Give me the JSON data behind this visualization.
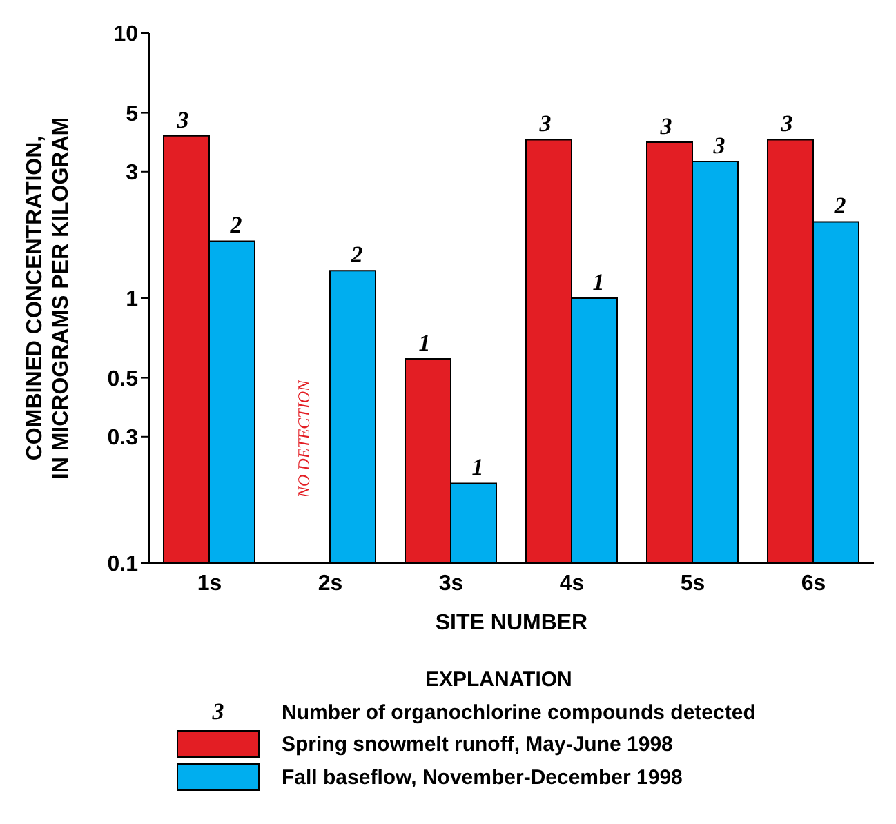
{
  "chart_data": {
    "type": "bar",
    "categories": [
      "1s",
      "2s",
      "3s",
      "4s",
      "5s",
      "6s"
    ],
    "series": [
      {
        "name": "Spring snowmelt runoff, May-June 1998",
        "color": "#e31e24",
        "values": [
          4.1,
          null,
          0.59,
          3.96,
          3.88,
          3.96
        ]
      },
      {
        "name": "Fall baseflow, November-December 1998",
        "color": "#00aeef",
        "values": [
          1.64,
          1.27,
          0.2,
          1.0,
          3.28,
          1.94
        ]
      }
    ],
    "xlabel": "SITE NUMBER",
    "ylabel": "COMBINED CONCENTRATION,\nIN MICROGRAMS PER KILOGRAM",
    "legend_title": "EXPLANATION",
    "annotations": [
      {
        "text": "3",
        "x": "1s",
        "y": 4.1
      },
      {
        "text": "2",
        "x": "1s",
        "y": 1.64
      },
      {
        "text": "2",
        "x": "2s",
        "y": 1.27
      },
      {
        "text": "1",
        "x": "3s",
        "y": 0.59
      },
      {
        "text": "1",
        "x": "3s",
        "y": 0.2
      },
      {
        "text": "3",
        "x": "4s",
        "y": 3.96
      },
      {
        "text": "1",
        "x": "4s",
        "y": 1.0
      },
      {
        "text": "3",
        "x": "5s",
        "y": 3.88
      },
      {
        "text": "3",
        "x": "5s",
        "y": 3.28
      },
      {
        "text": "3",
        "x": "6s",
        "y": 3.96
      },
      {
        "text": "2",
        "x": "6s",
        "y": 1.94
      },
      {
        "text": "NO DETECTION",
        "x": "2s"
      },
      "3",
      "Number of organochlorine compounds detected"
    ],
    "log": "y",
    "ylim": [
      0.1,
      10
    ],
    "yticks": [
      0.1,
      0.3,
      0.5,
      1,
      3,
      5,
      10
    ],
    "grid": false,
    "legend": "bottom"
  }
}
